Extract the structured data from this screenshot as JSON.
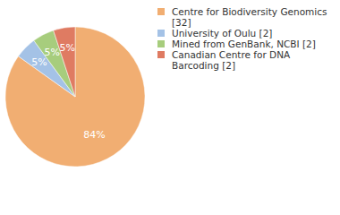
{
  "chart_data": {
    "type": "pie",
    "categories": [
      "Centre for Biodiversity Genomics [32]",
      "University of Oulu [2]",
      "Mined from GenBank, NCBI [2]",
      "Canadian Centre for DNA Barcoding [2]"
    ],
    "values": [
      84,
      5,
      5,
      5
    ],
    "value_labels": [
      "84%",
      "5%",
      "5%",
      "5%"
    ],
    "colors": [
      "#f1ae72",
      "#a4c2e6",
      "#a7cd7d",
      "#df7b62"
    ],
    "data_labels": true
  }
}
